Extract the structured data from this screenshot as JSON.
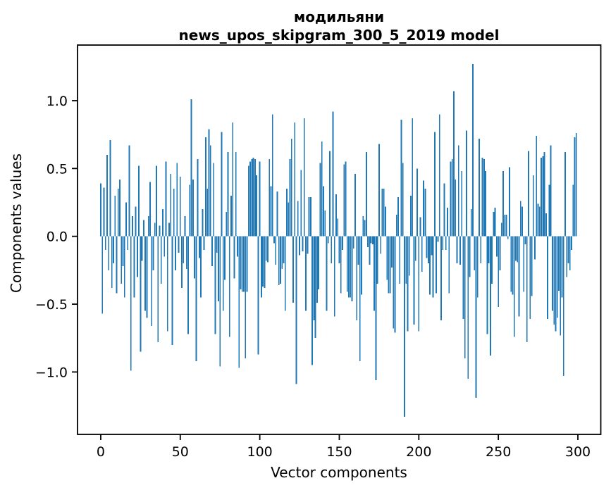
{
  "title": {
    "line1": "модильяни",
    "line2": "news_upos_skipgram_300_5_2019 model"
  },
  "chart_data": {
    "type": "bar",
    "title": "модильяни\nnews_upos_skipgram_300_5_2019 model",
    "xlabel": "Vector components",
    "ylabel": "Components values",
    "legend": null,
    "grid": false,
    "bar_color": "#1f77b4",
    "axis_color": "#000000",
    "xlim": [
      -14.6,
      314.4
    ],
    "ylim": [
      -1.46,
      1.41
    ],
    "x_ticks": [
      0,
      50,
      100,
      150,
      200,
      250,
      300
    ],
    "y_ticks": [
      1.0,
      0.5,
      0.0,
      -0.5,
      -1.0
    ],
    "y_tick_labels": [
      "1.0",
      "0.5",
      "0.0",
      "−0.5",
      "−1.0"
    ],
    "x": "component index 0..299",
    "values": [
      0.39,
      -0.57,
      0.36,
      -0.1,
      0.6,
      -0.25,
      0.71,
      -0.38,
      -0.2,
      0.3,
      -0.42,
      0.35,
      0.42,
      -0.35,
      -0.22,
      -0.45,
      0.25,
      -0.1,
      0.67,
      -0.99,
      0.15,
      -0.45,
      0.22,
      -0.3,
      0.52,
      -0.85,
      -0.18,
      0.12,
      -0.55,
      -0.6,
      0.15,
      0.4,
      -0.66,
      -0.25,
      0.1,
      0.52,
      -0.78,
      0.08,
      -0.35,
      0.2,
      -0.15,
      0.55,
      -0.7,
      0.1,
      0.46,
      -0.8,
      0.35,
      -0.25,
      0.54,
      -0.12,
      0.44,
      -0.38,
      -0.2,
      0.15,
      -0.24,
      -0.72,
      0.38,
      1.01,
      0.42,
      -0.31,
      -0.92,
      0.57,
      -0.16,
      -0.45,
      0.2,
      -0.1,
      0.73,
      0.35,
      0.79,
      0.67,
      -0.22,
      0.54,
      -0.72,
      -0.12,
      -0.48,
      -0.96,
      0.77,
      -0.55,
      -0.32,
      0.18,
      0.62,
      -0.74,
      0.3,
      0.84,
      -0.31,
      0.62,
      -0.15,
      -0.97,
      -0.39,
      -0.41,
      -0.41,
      -0.9,
      -0.41,
      0.52,
      0.55,
      0.57,
      0.58,
      0.57,
      0.45,
      -0.87,
      0.55,
      -0.45,
      -0.37,
      -0.38,
      -0.18,
      -0.19,
      0.57,
      0.37,
      0.9,
      -0.05,
      -0.21,
      0.33,
      -0.36,
      -0.35,
      -0.24,
      -0.2,
      -0.55,
      0.35,
      0.25,
      0.57,
      0.72,
      -0.49,
      0.84,
      -1.09,
      0.26,
      -0.14,
      0.49,
      -0.11,
      0.87,
      -0.55,
      -0.13,
      0.29,
      0.29,
      -0.95,
      -0.62,
      -0.75,
      -0.49,
      -0.39,
      0.54,
      0.7,
      0.37,
      0.19,
      -0.55,
      -0.05,
      0.63,
      -0.2,
      0.92,
      -0.59,
      0.31,
      0.13,
      -0.2,
      -0.42,
      -0.1,
      0.53,
      0.55,
      -0.41,
      -0.45,
      -0.45,
      -0.48,
      -0.09,
      0.46,
      -0.62,
      -0.21,
      -0.92,
      -0.43,
      0.15,
      0.12,
      0.62,
      -0.08,
      -0.21,
      -0.05,
      -0.06,
      -0.55,
      -1.06,
      -0.35,
      0.68,
      -0.13,
      0.35,
      0.35,
      0.22,
      -0.32,
      -0.42,
      -0.42,
      -0.23,
      -0.68,
      -0.71,
      0.16,
      0.29,
      -0.35,
      0.86,
      0.54,
      -1.33,
      -0.35,
      -0.7,
      -0.29,
      0.3,
      0.87,
      -0.65,
      -0.18,
      0.5,
      -0.7,
      0.14,
      -0.26,
      0.41,
      0.35,
      -0.16,
      -0.2,
      -0.43,
      -0.14,
      -0.45,
      0.77,
      -0.42,
      -0.04,
      0.9,
      -0.62,
      -0.1,
      0.39,
      -0.1,
      0.21,
      -0.42,
      0.55,
      0.57,
      1.07,
      0.42,
      -0.2,
      0.67,
      -0.21,
      0.48,
      -0.61,
      -0.9,
      0.78,
      -1.05,
      -0.3,
      0.2,
      1.27,
      -0.25,
      -1.19,
      -0.45,
      0.72,
      -0.2,
      0.58,
      0.57,
      0.48,
      -0.72,
      -0.2,
      -0.88,
      -0.35,
      0.18,
      0.21,
      -0.15,
      -0.52,
      -0.25,
      0.1,
      0.48,
      0.16,
      0.16,
      -0.02,
      0.51,
      -0.41,
      -0.43,
      -0.74,
      -0.18,
      -0.19,
      -0.59,
      0.26,
      0.22,
      -0.41,
      -0.06,
      -0.78,
      0.63,
      -0.61,
      -0.44,
      0.45,
      -0.17,
      0.74,
      0.24,
      0.22,
      0.58,
      0.59,
      0.62,
      0.17,
      -0.61,
      0.38,
      0.67,
      -0.55,
      -0.65,
      -0.7,
      -0.6,
      -0.4,
      -0.73,
      -0.45,
      -1.03,
      0.62,
      -0.3,
      -0.2,
      -0.25,
      -0.1,
      0.38,
      0.73,
      0.76
    ]
  }
}
